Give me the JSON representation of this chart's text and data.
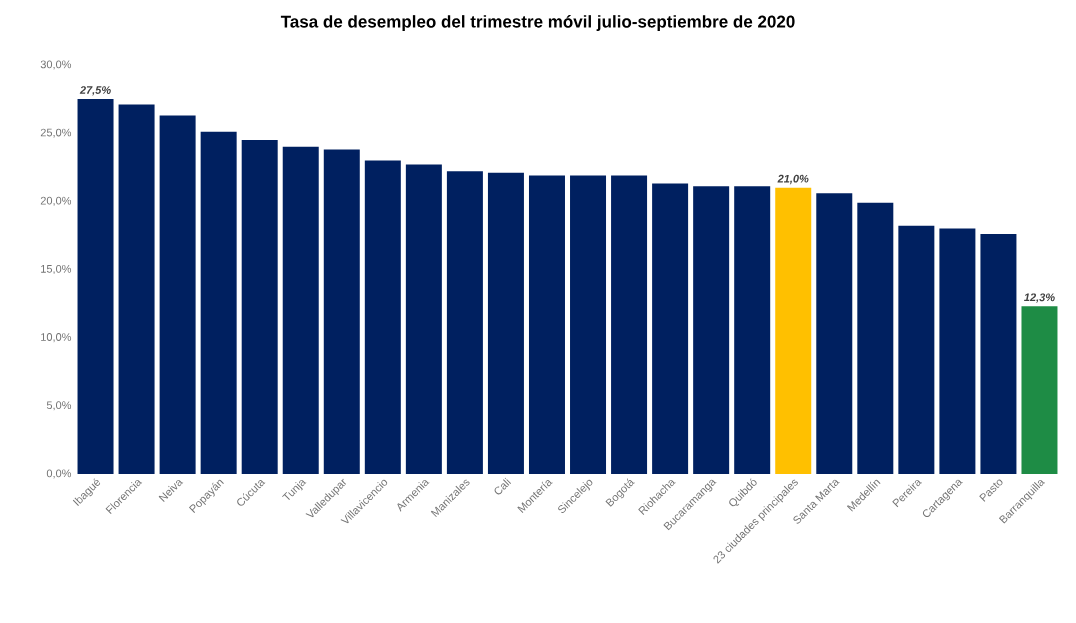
{
  "chart_data": {
    "type": "bar",
    "title": "Tasa de desempleo del trimestre móvil julio-septiembre de 2020",
    "categories": [
      "Ibagué",
      "Florencia",
      "Neiva",
      "Popayán",
      "Cúcuta",
      "Tunja",
      "Valledupar",
      "Villavicencio",
      "Armenia",
      "Manizales",
      "Cali",
      "Montería",
      "Sincelejo",
      "Bogotá",
      "Riohacha",
      "Bucaramanga",
      "Quibdó",
      "23 ciudades principales",
      "Santa Marta",
      "Medellín",
      "Pereira",
      "Cartagena",
      "Pasto",
      "Barranquilla"
    ],
    "values": [
      27.5,
      27.1,
      26.3,
      25.1,
      24.5,
      24.0,
      23.8,
      23.0,
      22.7,
      22.2,
      22.1,
      21.9,
      21.9,
      21.9,
      21.3,
      21.1,
      21.1,
      21.0,
      20.6,
      19.9,
      18.2,
      18.0,
      17.6,
      12.3
    ],
    "colors": [
      "#002060",
      "#002060",
      "#002060",
      "#002060",
      "#002060",
      "#002060",
      "#002060",
      "#002060",
      "#002060",
      "#002060",
      "#002060",
      "#002060",
      "#002060",
      "#002060",
      "#002060",
      "#002060",
      "#002060",
      "#ffc000",
      "#002060",
      "#002060",
      "#002060",
      "#002060",
      "#002060",
      "#1e8c45"
    ],
    "value_labels": [
      "27,5%",
      null,
      null,
      null,
      null,
      null,
      null,
      null,
      null,
      null,
      null,
      null,
      null,
      null,
      null,
      null,
      null,
      "21,0%",
      null,
      null,
      null,
      null,
      null,
      "12,3%"
    ],
    "ylim": [
      0,
      30
    ],
    "yticks": [
      {
        "value": 0,
        "label": "0,0%"
      },
      {
        "value": 5,
        "label": "5,0%"
      },
      {
        "value": 10,
        "label": "10,0%"
      },
      {
        "value": 15,
        "label": "15,0%"
      },
      {
        "value": 20,
        "label": "20,0%"
      },
      {
        "value": 25,
        "label": "25,0%"
      },
      {
        "value": 30,
        "label": "30,0%"
      }
    ],
    "grid": false
  }
}
